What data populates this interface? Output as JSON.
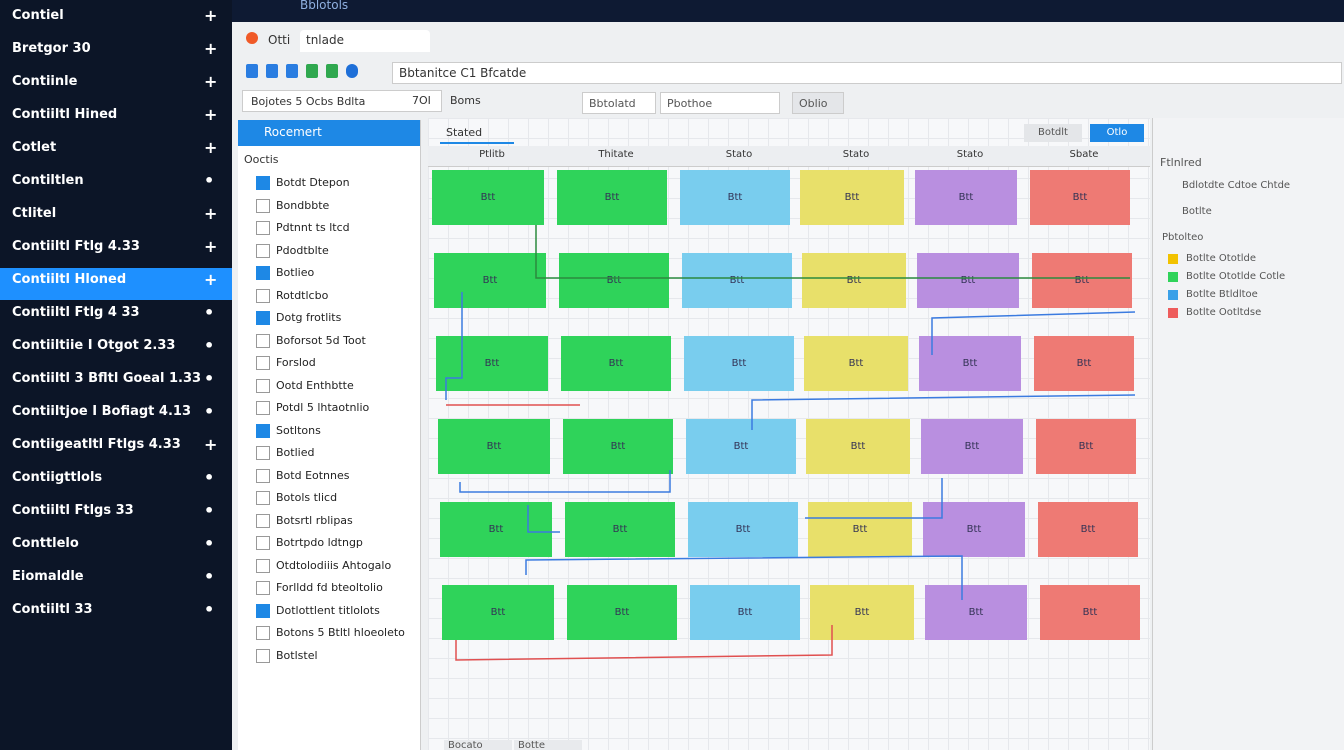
{
  "window_title": "Bblotols",
  "sidebar": {
    "items": [
      {
        "label": "Contiel",
        "icon": "+"
      },
      {
        "label": "Bretgor 30",
        "icon": "+"
      },
      {
        "label": "Contiinle",
        "icon": "+"
      },
      {
        "label": "Contiiltl Hined",
        "icon": "+"
      },
      {
        "label": "Cotlet",
        "icon": "+"
      },
      {
        "label": "Contiltlen",
        "icon": "•"
      },
      {
        "label": "Ctlitel",
        "icon": "+"
      },
      {
        "label": "Contiiltl Ftlg 4.33",
        "icon": "+"
      },
      {
        "label": "Contiiltl Hloned",
        "icon": "+",
        "active": true
      },
      {
        "label": "Contiiltl Ftlg 4 33",
        "icon": "•"
      },
      {
        "label": "Contiiltiie I Otgot 2.33",
        "icon": "•"
      },
      {
        "label": "Contiiltl 3 Bfltl Goeal 1.33",
        "icon": "•"
      },
      {
        "label": "Contiiltjoe I Bofiagt 4.13",
        "icon": "•"
      },
      {
        "label": "Contiigeatltl Ftlgs 4.33",
        "icon": "+"
      },
      {
        "label": "Contiigttlols",
        "icon": "•"
      },
      {
        "label": "Contiiltl Ftlgs 33",
        "icon": "•"
      },
      {
        "label": "Conttlelo",
        "icon": "•"
      },
      {
        "label": "Eiomaldle",
        "icon": "•"
      },
      {
        "label": "Contiiltl 33",
        "icon": "•"
      }
    ]
  },
  "tabs": [
    "Otti",
    "tnlade"
  ],
  "address": "Bbtanitce C1 Bfcatde",
  "filter": {
    "search": "Bojotes 5 Ocbs Bdlta",
    "zoom": "7OI",
    "label": "Boms",
    "select": [
      "Bbtolatd",
      "Pbothoe"
    ],
    "button": "Oblio"
  },
  "panel": {
    "title": "Rocemert",
    "section": "Ooctis",
    "items": [
      {
        "label": "Botdt Dtepon",
        "checked": true
      },
      {
        "label": "Bondbbte",
        "checked": false
      },
      {
        "label": "Pdtnnt ts ltcd",
        "checked": false
      },
      {
        "label": "Pdodtblte",
        "checked": false
      },
      {
        "label": "Botlieo",
        "checked": true
      },
      {
        "label": "Rotdtlcbo",
        "checked": false
      },
      {
        "label": "Dotg frotlits",
        "checked": true
      },
      {
        "label": "Boforsot 5d Toot",
        "checked": false
      },
      {
        "label": "Forslod",
        "checked": false
      },
      {
        "label": "Ootd Enthbtte",
        "checked": false
      },
      {
        "label": "Potdl 5 lhtaotnlio",
        "checked": false
      },
      {
        "label": "Sotltons",
        "checked": true
      },
      {
        "label": "Botlied",
        "checked": false
      },
      {
        "label": "Botd Eotnnes",
        "checked": false
      },
      {
        "label": "Botols tlicd",
        "checked": false
      },
      {
        "label": "Botsrtl rblipas",
        "checked": false
      },
      {
        "label": "Botrtpdo ldtngp",
        "checked": false
      },
      {
        "label": "Otdtolodiiis Ahtogalo",
        "checked": false
      },
      {
        "label": "Forlldd fd bteoltolio",
        "checked": false
      },
      {
        "label": "Dotlottlent titlolots",
        "checked": true
      },
      {
        "label": "Botons 5 Btltl hloeoleto",
        "checked": false
      },
      {
        "label": "Botlstel",
        "checked": false
      }
    ]
  },
  "board": {
    "tab": "Stated",
    "columns": [
      {
        "name": "Ptlitb",
        "color": "#2fd35a"
      },
      {
        "name": "Thitate",
        "color": "#2fd35a"
      },
      {
        "name": "Stato",
        "color": "#79cdee"
      },
      {
        "name": "Stato",
        "color": "#e8e06a"
      },
      {
        "name": "Stato",
        "color": "#b98fe0"
      },
      {
        "name": "Sbate",
        "color": "#ee7a74"
      }
    ],
    "rows": [
      [
        "Btt",
        "Btt",
        "Btt",
        "Btt",
        "Btt",
        "Btt"
      ],
      [
        "Btt",
        "Btt",
        "Btt",
        "Btt",
        "Btt",
        "Btt"
      ],
      [
        "Btt",
        "Btt",
        "Btt",
        "Btt",
        "Btt",
        "Btt"
      ],
      [
        "Btt",
        "Btt",
        "Btt",
        "Btt",
        "Btt",
        "Btt"
      ],
      [
        "Btt",
        "Btt",
        "Btt",
        "Btt",
        "Btt",
        "Btt"
      ],
      [
        "Btt",
        "Btt",
        "Btt",
        "Btt",
        "Btt",
        "Btt"
      ]
    ]
  },
  "right_panel": {
    "buttons": [
      "Botdlt",
      "Otlo"
    ],
    "heading": "Ftlnlred",
    "options": [
      "Bdlotdte Cdtoe Chtde",
      "Botlte"
    ],
    "section": "Pbtolteo",
    "legend": [
      {
        "label": "Botlte Ototlde",
        "color": "#f2c200"
      },
      {
        "label": "Botlte Ototlde Cotle",
        "color": "#2fd35a"
      },
      {
        "label": "Botlte Btldltoe",
        "color": "#3aa0e8"
      },
      {
        "label": "Botlte Ootltdse",
        "color": "#ee5c5c"
      }
    ]
  },
  "bottom_tabs": [
    "Bocato",
    "Botte"
  ]
}
